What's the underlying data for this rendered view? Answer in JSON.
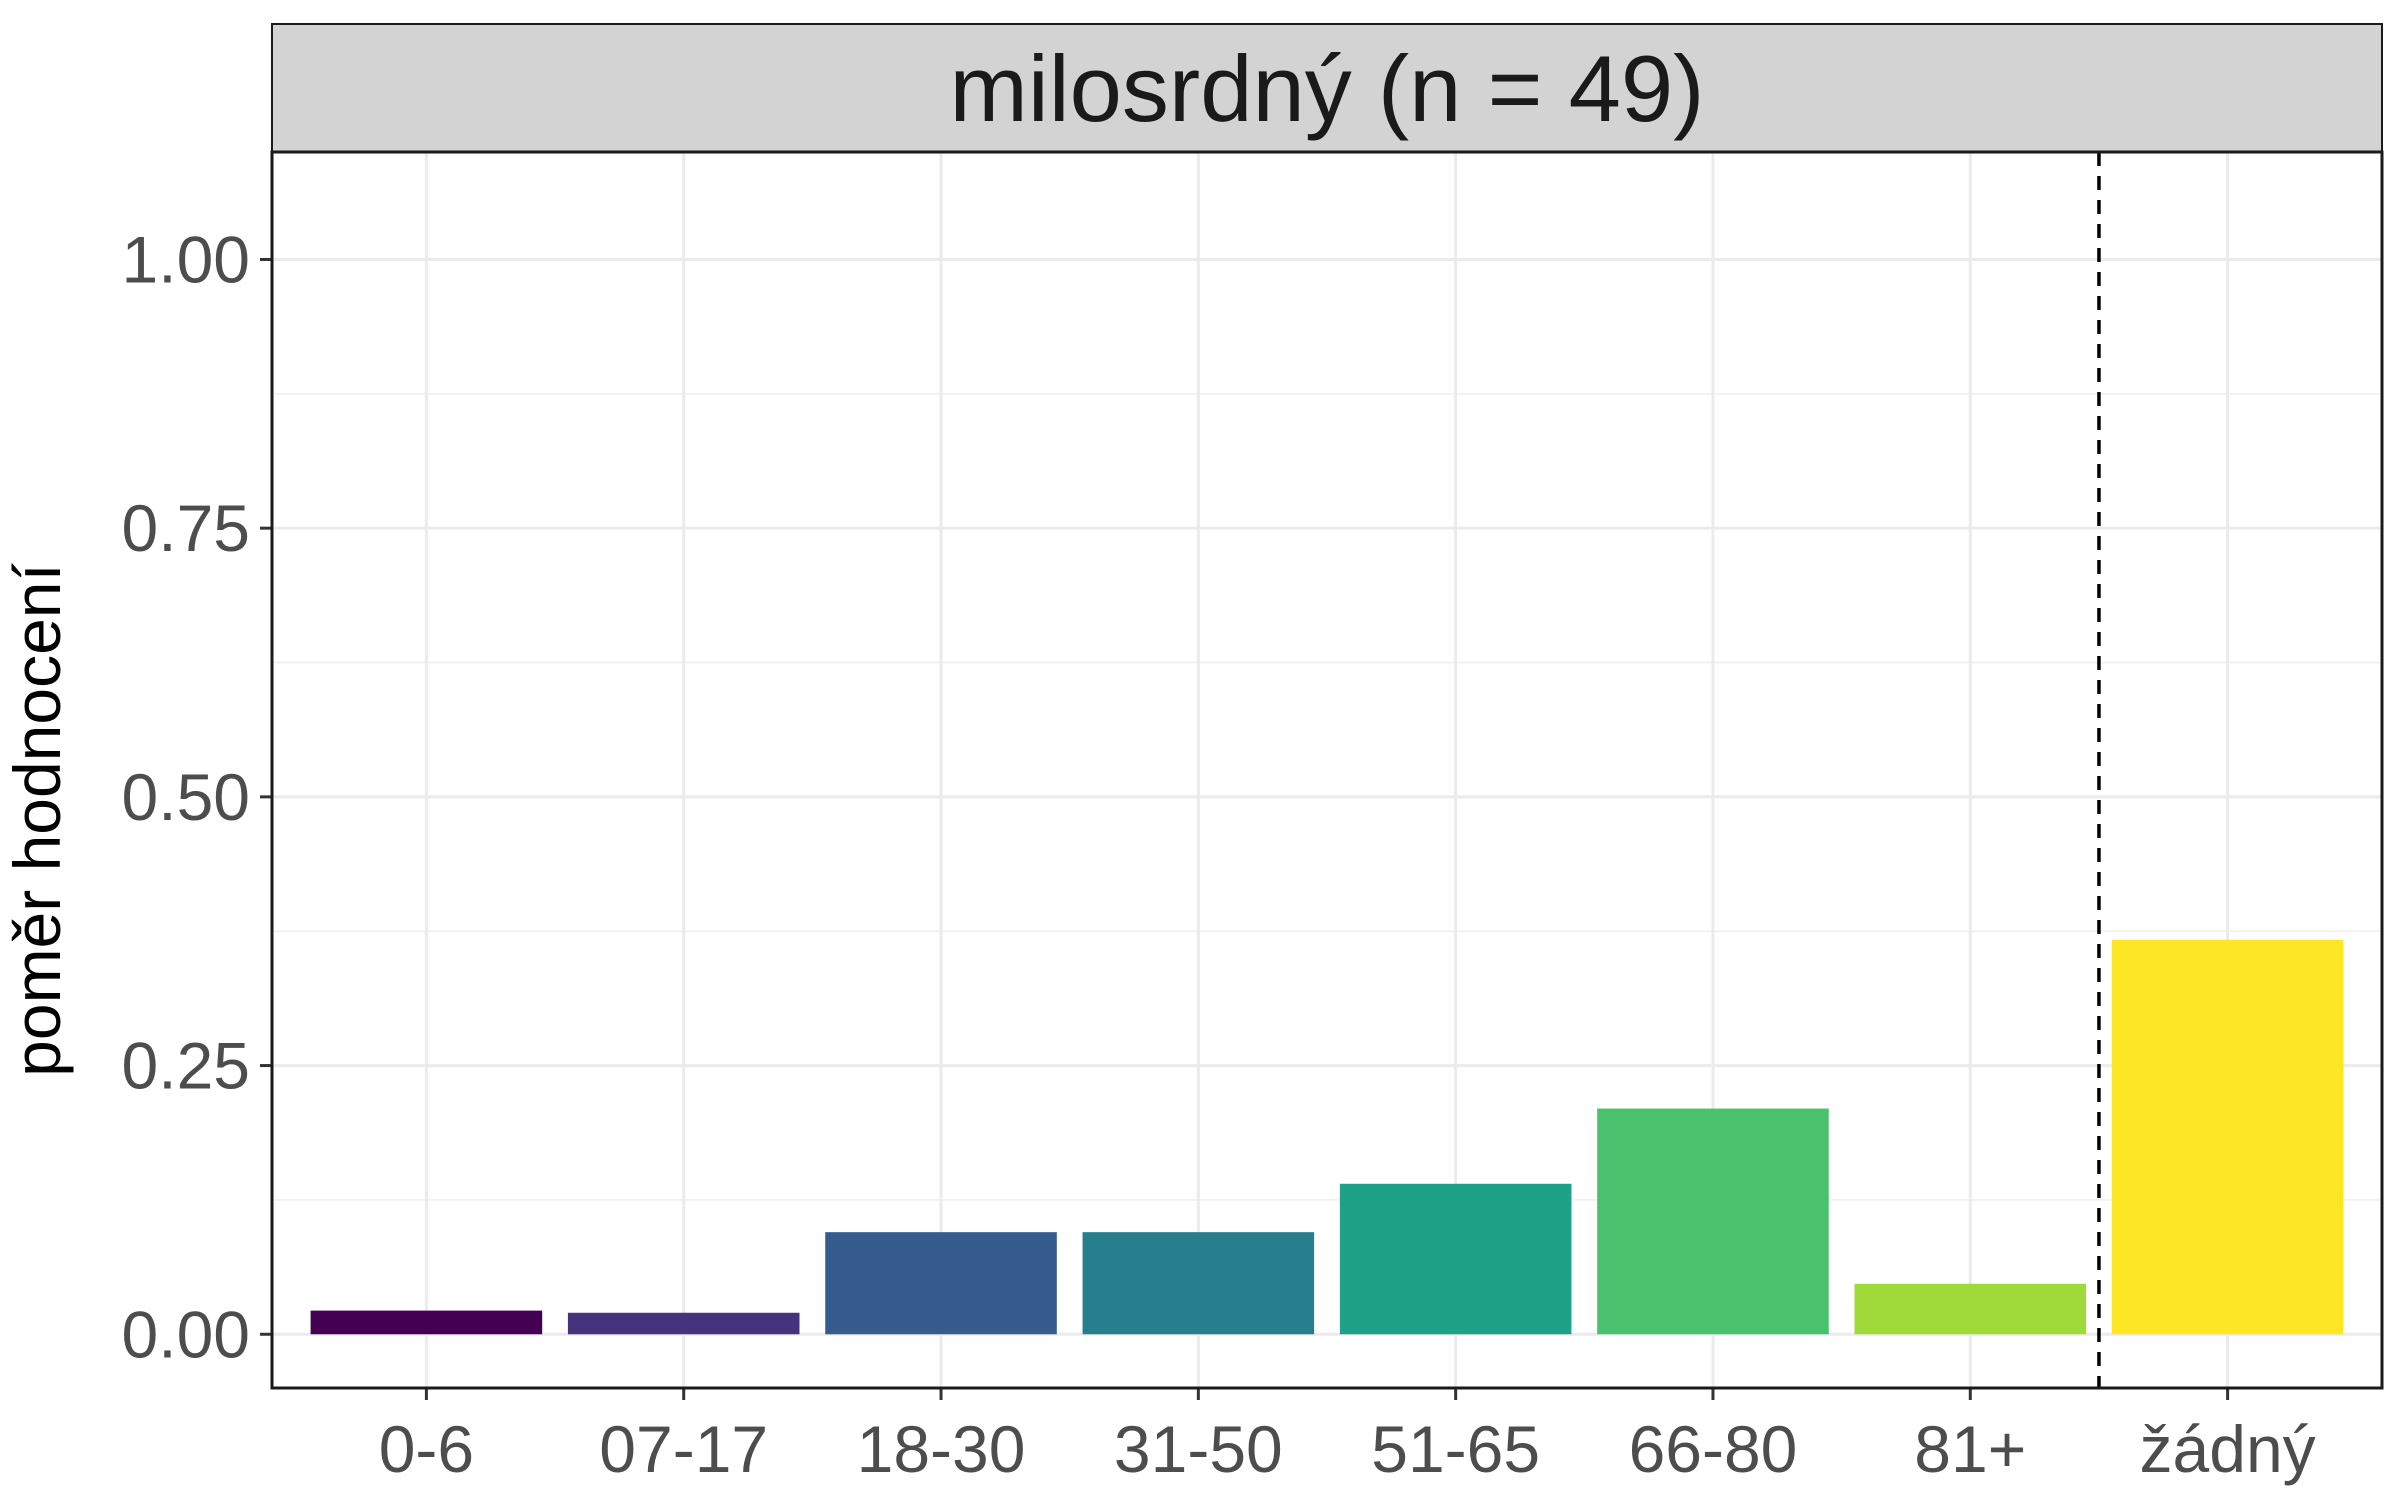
{
  "chart_data": {
    "type": "bar",
    "title": "milosrdný (n = 49)",
    "xlabel": "",
    "ylabel": "poměr hodnocení",
    "categories": [
      "0-6",
      "07-17",
      "18-30",
      "31-50",
      "51-65",
      "66-80",
      "81+",
      "žádný"
    ],
    "values": [
      0.022,
      0.02,
      0.095,
      0.095,
      0.14,
      0.21,
      0.047,
      0.367
    ],
    "colors": [
      "#440154",
      "#46337e",
      "#365c8d",
      "#277f8e",
      "#1fa187",
      "#4ac16d",
      "#a0da39",
      "#fde725"
    ],
    "ylim": [
      -0.05,
      1.1
    ],
    "yticks": [
      0.0,
      0.25,
      0.5,
      0.75,
      1.0
    ],
    "ytick_labels": [
      "0.00",
      "0.25",
      "0.50",
      "0.75",
      "1.00"
    ],
    "grid": true,
    "separator": {
      "type": "dashed-vertical-line",
      "between": [
        "81+",
        "žádný"
      ]
    },
    "legend": "none"
  },
  "colors": {
    "strip_background": "#d3d3d3",
    "panel_border": "#1a1a1a",
    "grid_major": "#ebebeb",
    "grid_minor": "#f2f2f2",
    "separator": "#000000"
  }
}
